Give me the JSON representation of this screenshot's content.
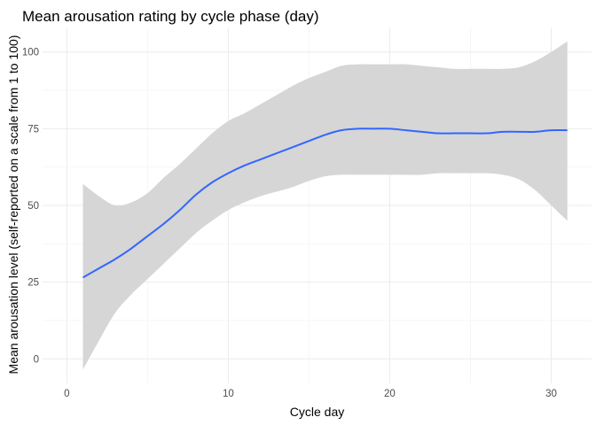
{
  "chart_data": {
    "type": "line",
    "title": "Mean arousation rating by cycle phase (day)",
    "xlabel": "Cycle day",
    "ylabel": "Mean arousation level (self-reported on a scale from 1 to 100)",
    "xlim": [
      -1.5,
      32.5
    ],
    "ylim": [
      -8,
      108
    ],
    "x_ticks": [
      0,
      10,
      20,
      30
    ],
    "y_ticks": [
      0,
      25,
      50,
      75,
      100
    ],
    "grid": true,
    "legend": "none",
    "colors": {
      "line": "#3366FF",
      "ribbon": "#d6d6d6",
      "grid": "#ebebeb"
    },
    "series": [
      {
        "x": [
          1,
          2,
          3,
          4,
          5,
          6,
          7,
          8,
          9,
          10,
          11,
          12,
          13,
          14,
          15,
          16,
          17,
          18,
          19,
          20,
          21,
          22,
          23,
          24,
          25,
          26,
          27,
          28,
          29,
          30,
          31
        ],
        "y": [
          26.5,
          29.5,
          32.5,
          36,
          40,
          44,
          48.5,
          53.5,
          57.5,
          60.5,
          63,
          65,
          67,
          69,
          71,
          73,
          74.5,
          75,
          75,
          75,
          74.5,
          74,
          73.5,
          73.5,
          73.5,
          73.5,
          74,
          74,
          74,
          74.5,
          74.5
        ],
        "ymin": [
          -3.5,
          6,
          15,
          21,
          26,
          31,
          36,
          41,
          45,
          48.5,
          51,
          53,
          54.5,
          56,
          58,
          59.5,
          60,
          60,
          60,
          60,
          60,
          60,
          60.5,
          60.5,
          60.5,
          60.5,
          60,
          58.5,
          55,
          50,
          45
        ],
        "ymax": [
          57,
          53,
          50,
          51,
          54,
          59,
          63.5,
          68.5,
          73.5,
          77.5,
          80,
          83,
          86,
          89,
          91.5,
          93.5,
          95.5,
          96,
          96,
          96,
          96,
          95.5,
          95,
          94.5,
          94.5,
          94.5,
          94.5,
          95,
          97,
          100,
          103.5
        ]
      }
    ]
  }
}
